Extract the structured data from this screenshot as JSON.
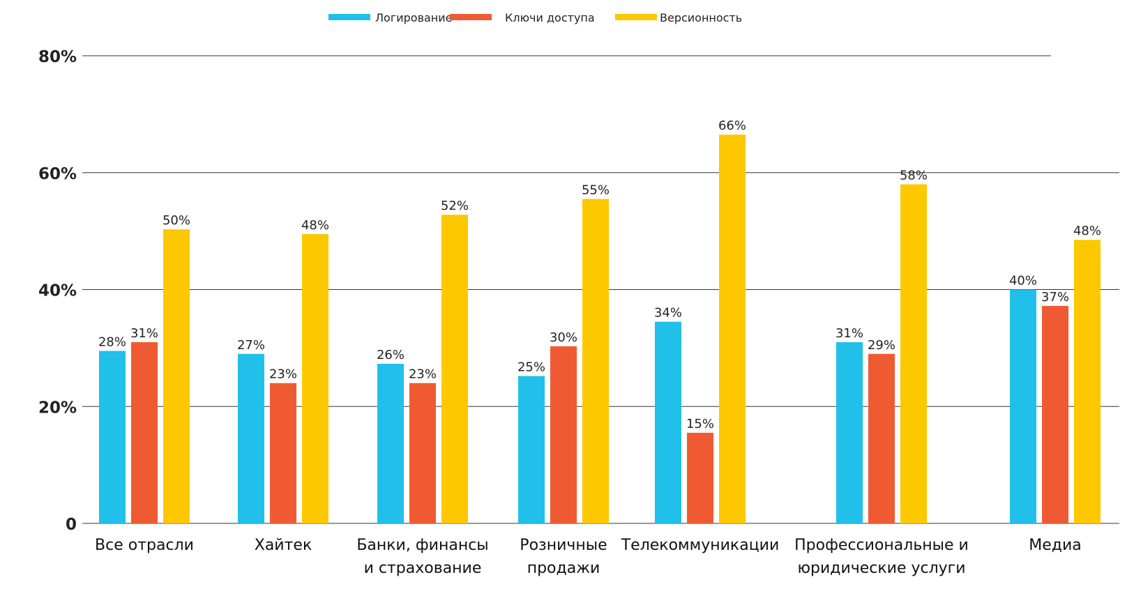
{
  "chart_data": {
    "type": "bar",
    "legend_position": "top-center",
    "grid": true,
    "ylim": [
      0,
      80
    ],
    "yticks": [
      0,
      20,
      40,
      60,
      80
    ],
    "ytick_labels": [
      "0",
      "20%",
      "40%",
      "60%",
      "80%"
    ],
    "categories": [
      [
        "Все отрасли"
      ],
      [
        "Хайтек"
      ],
      [
        "Банки, финансы",
        "и страхование"
      ],
      [
        "Розничные",
        "продажи"
      ],
      [
        "Телекоммуникации"
      ],
      [
        "Профессиональные и",
        "юридические услуги"
      ],
      [
        "Медиа"
      ]
    ],
    "series": [
      {
        "name": "Логирование",
        "color": "#20c0ea",
        "values": [
          28,
          27,
          26,
          25,
          34,
          31,
          40
        ],
        "labels": [
          "28%",
          "27%",
          "26%",
          "25%",
          "34%",
          "31%",
          "40%"
        ],
        "bar_tops": [
          29.5,
          29,
          27.3,
          25.2,
          34.5,
          31,
          40
        ]
      },
      {
        "name": "Ключи доступа",
        "color": "#f05a32",
        "values": [
          31,
          23,
          23,
          30,
          15,
          29,
          37
        ],
        "labels": [
          "31%",
          "23%",
          "23%",
          "30%",
          "15%",
          "29%",
          "37%"
        ],
        "bar_tops": [
          31,
          24,
          24,
          30.3,
          15.5,
          29,
          37.2
        ]
      },
      {
        "name": "Версионность",
        "color": "#fdc800",
        "values": [
          50,
          48,
          52,
          55,
          66,
          58,
          48
        ],
        "labels": [
          "50%",
          "48%",
          "52%",
          "55%",
          "66%",
          "58%",
          "48%"
        ],
        "bar_tops": [
          50.3,
          49.5,
          52.8,
          55.5,
          66.5,
          58,
          48.5
        ]
      }
    ]
  }
}
